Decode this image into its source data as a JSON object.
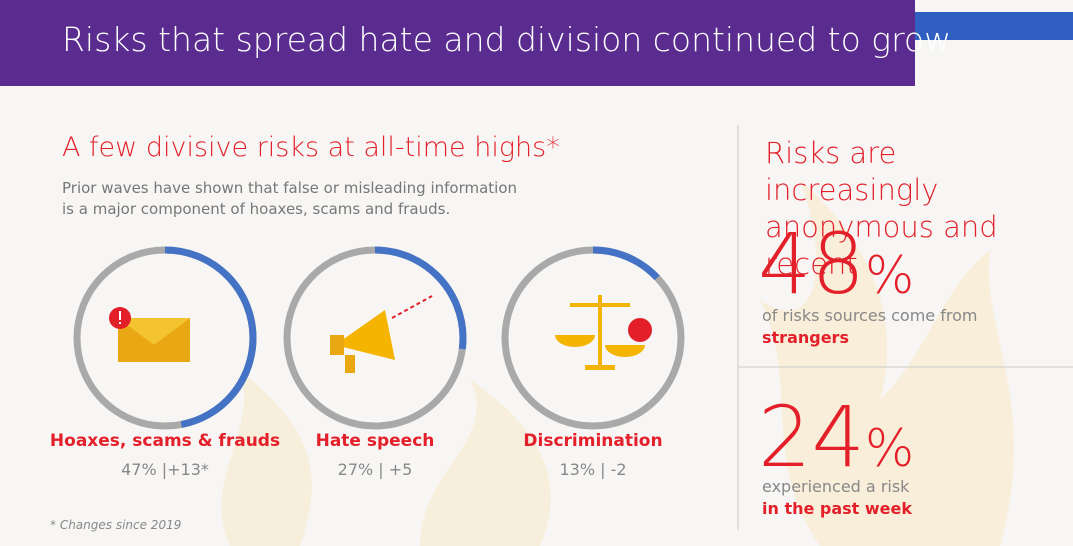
{
  "header": {
    "title": "Risks that spread hate and division continued to grow"
  },
  "left": {
    "heading": "A few divisive risks at all-time highs*",
    "description": "Prior waves have shown that false or misleading information is a major component of hoaxes, scams and frauds.",
    "items": [
      {
        "name": "Hoaxes, scams & frauds",
        "value": 47,
        "stat_label": "47% |+13*"
      },
      {
        "name": "Hate speech",
        "value": 27,
        "stat_label": "27% | +5"
      },
      {
        "name": "Discrimination",
        "value": 13,
        "stat_label": "13% | -2"
      }
    ],
    "footnote": "* Changes since 2019"
  },
  "right": {
    "heading": "Risks are increasingly anonymous and recent",
    "stats": [
      {
        "number": "48",
        "unit": "%",
        "text": "of risks sources come from",
        "emphasis": "strangers"
      },
      {
        "number": "24",
        "unit": "%",
        "text": "experienced a risk",
        "emphasis": "in the past week"
      }
    ]
  }
}
